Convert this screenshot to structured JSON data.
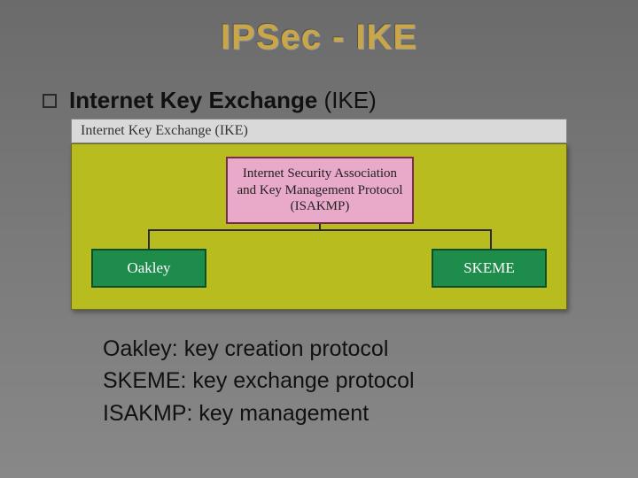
{
  "title": "IPSec - IKE",
  "bullet": {
    "heading_bold": "Internet Key Exchange",
    "heading_rest": " (IKE)"
  },
  "figure": {
    "caption": "Internet Key Exchange (IKE)",
    "diagram_bg": "#b9bc1f",
    "isakmp": {
      "line1": "Internet Security Association",
      "line2": "and Key Management Protocol",
      "line3": "(ISAKMP)",
      "bg": "#e9a9c9",
      "border": "#7a2b55"
    },
    "oakley": {
      "label": "Oakley",
      "bg": "#1e8c4a",
      "border": "#0d4f28"
    },
    "skeme": {
      "label": "SKEME",
      "bg": "#1e8c4a",
      "border": "#0d4f28"
    }
  },
  "notes": {
    "line1": "Oakley: key creation protocol",
    "line2": "SKEME: key exchange protocol",
    "line3": "ISAKMP: key management"
  }
}
